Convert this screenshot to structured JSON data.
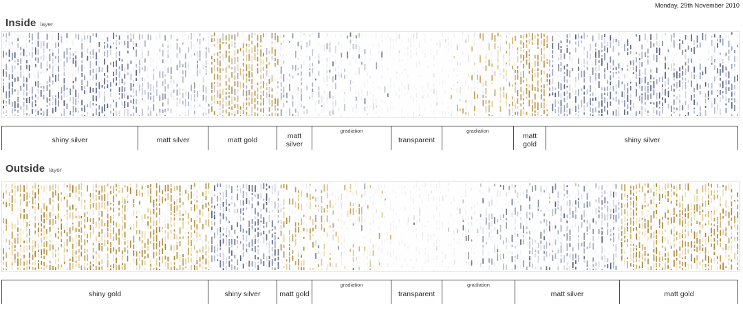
{
  "date": "Monday, 29th November 2010",
  "colors": {
    "bar_line": "#4a4a4a",
    "strip_border": "#dfdfe8",
    "title_text": "#3a3a3a",
    "label_text": "#2e2e2e"
  },
  "palettes": {
    "silverShiny": [
      "#6a7490",
      "#848ea9",
      "#9ca5bd",
      "#b8bed0",
      "#d3d6e3",
      "#59637f"
    ],
    "silverMatt": [
      "#9098ab",
      "#aab0c1",
      "#c4c8d6",
      "#dcdfe8",
      "#b6bbca"
    ],
    "silverSparse": [
      "#9ba1b3",
      "#bdc2d0",
      "#d9dbe6",
      "#747a8b",
      "#e5e7f0"
    ],
    "gold": [
      "#b28f42",
      "#c5a45c",
      "#d6bb7e",
      "#e5d3a2",
      "#bd9a4e"
    ],
    "goldShiny": [
      "#a98736",
      "#c09e51",
      "#d3b571",
      "#e4ce96",
      "#efe2bc",
      "#b79345"
    ],
    "goldLight": [
      "#d1b674",
      "#dfcb94",
      "#ebdeb5",
      "#c3a45c"
    ],
    "pale": [
      "#e4e6ef",
      "#dbdde9",
      "#eef0f7"
    ],
    "darkDot": [
      "#585d6c"
    ]
  },
  "sections": [
    {
      "id": "inside",
      "title": "Inside",
      "title_suffix": "layer",
      "strip_width": 1071,
      "strip_height": 125,
      "seed": 12345,
      "bands": [
        {
          "label": "shiny silver",
          "start": 0,
          "end": 198,
          "label_style": "center",
          "texture": {
            "pal": "silverShiny",
            "d0": 0.8,
            "d1": 0.78,
            "vg": 0.45
          }
        },
        {
          "label": "matt silver",
          "start": 198,
          "end": 300,
          "label_style": "center",
          "texture": {
            "pal": "silverMatt",
            "d0": 0.6,
            "d1": 0.6,
            "vg": 0.35
          }
        },
        {
          "label": "matt gold",
          "start": 300,
          "end": 400,
          "label_style": "center",
          "texture": {
            "pal": "gold",
            "pal2": "silverMatt",
            "mix": 0.16,
            "d0": 0.82,
            "d1": 0.86,
            "vg": 0.15
          }
        },
        {
          "label": "matt silver",
          "start": 400,
          "end": 451,
          "label_style": "center",
          "texture": {
            "pal": "silverMatt",
            "d0": 0.5,
            "d1": 0.38,
            "vg": 0.2
          }
        },
        {
          "label": "gradiation",
          "start": 451,
          "end": 566,
          "label_style": "top",
          "texture": {
            "pal": "silverSparse",
            "d0": 0.36,
            "d1": 0.08,
            "vg": 0.15
          }
        },
        {
          "label": "transparent",
          "start": 566,
          "end": 640,
          "label_style": "center",
          "texture": {
            "pal": "pale",
            "pal2": "darkDot",
            "mix": 0.06,
            "d0": 0.09,
            "d1": 0.06,
            "vg": 0
          }
        },
        {
          "label": "gradiation",
          "start": 640,
          "end": 744,
          "label_style": "top",
          "texture": {
            "pal": "goldLight",
            "pal2": "pale",
            "mix": 0.2,
            "d0": 0.07,
            "d1": 0.75,
            "vg": 0.1
          }
        },
        {
          "label": "matt gold",
          "start": 744,
          "end": 791,
          "label_style": "center",
          "texture": {
            "pal": "gold",
            "d0": 0.9,
            "d1": 0.9,
            "vg": 0.1
          }
        },
        {
          "label": "shiny silver",
          "start": 791,
          "end": 1071,
          "label_style": "center",
          "texture": {
            "pal": "silverShiny",
            "d0": 0.78,
            "d1": 0.62,
            "vg": 0.25
          }
        }
      ]
    },
    {
      "id": "outside",
      "title": "Outside",
      "title_suffix": "layer",
      "strip_width": 1071,
      "strip_height": 130,
      "seed": 67890,
      "bands": [
        {
          "label": "shiny gold",
          "start": 0,
          "end": 300,
          "label_style": "center",
          "texture": {
            "pal": "goldShiny",
            "d0": 0.85,
            "d1": 0.8,
            "vg": 0.2
          }
        },
        {
          "label": "shiny silver",
          "start": 300,
          "end": 400,
          "label_style": "center",
          "texture": {
            "pal": "silverShiny",
            "d0": 0.8,
            "d1": 0.78,
            "vg": 0.2
          }
        },
        {
          "label": "matt gold",
          "start": 400,
          "end": 451,
          "label_style": "center",
          "texture": {
            "pal": "gold",
            "d0": 0.6,
            "d1": 0.5,
            "vg": 0.15
          }
        },
        {
          "label": "gradiation",
          "start": 451,
          "end": 566,
          "label_style": "top",
          "texture": {
            "pal": "goldLight",
            "pal2": "silverSparse",
            "mix": 0.25,
            "d0": 0.45,
            "d1": 0.06,
            "vg": 0.1
          }
        },
        {
          "label": "transparent",
          "start": 566,
          "end": 640,
          "label_style": "center",
          "texture": {
            "pal": "pale",
            "pal2": "darkDot",
            "mix": 0.05,
            "d0": 0.06,
            "d1": 0.05,
            "vg": 0
          }
        },
        {
          "label": "gradiation",
          "start": 640,
          "end": 746,
          "label_style": "top",
          "texture": {
            "pal": "silverSparse",
            "d0": 0.05,
            "d1": 0.5,
            "vg": 0.1
          }
        },
        {
          "label": "matt silver",
          "start": 746,
          "end": 898,
          "label_style": "center",
          "texture": {
            "pal": "silverMatt",
            "pal2": "silverShiny",
            "mix": 0.3,
            "d0": 0.55,
            "d1": 0.65,
            "vg": 0.2
          }
        },
        {
          "label": "matt gold",
          "start": 898,
          "end": 1071,
          "label_style": "center",
          "texture": {
            "pal": "goldShiny",
            "d0": 0.88,
            "d1": 0.85,
            "vg": 0.15
          }
        }
      ]
    }
  ]
}
